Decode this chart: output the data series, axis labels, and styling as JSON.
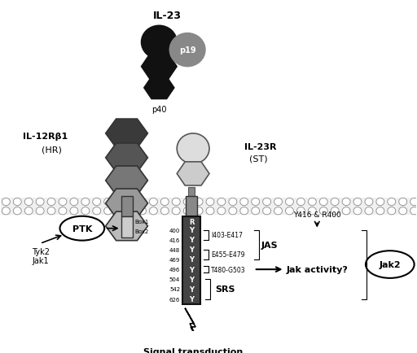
{
  "background_color": "#ffffff",
  "il23_label": "IL-23",
  "il23r_label": "IL-23R",
  "il23r_sub": "(ST)",
  "il12rb1_label": "IL-12Rβ1",
  "il12rb1_sub": "(HR)",
  "p19_label": "p19",
  "p40_label": "p40",
  "ptk_label": "PTK",
  "jak2_label": "Jak2",
  "jak_activity_label": "Jak activity?",
  "signal_label": "Signal transduction",
  "jas_label": "JAS",
  "srs_label": "SRS",
  "box1_label": "Box1",
  "box2_label": "Box2",
  "r_label": "R",
  "numbers": [
    "400",
    "416",
    "448",
    "469",
    "496",
    "504",
    "542",
    "626"
  ],
  "y416_r400_label": "Y416 & R400",
  "tyk2_label": "Tyk2",
  "jak1_label": "Jak1",
  "ann1": "I403-E417",
  "ann2": "E455-E479",
  "ann3": "T480-G503"
}
